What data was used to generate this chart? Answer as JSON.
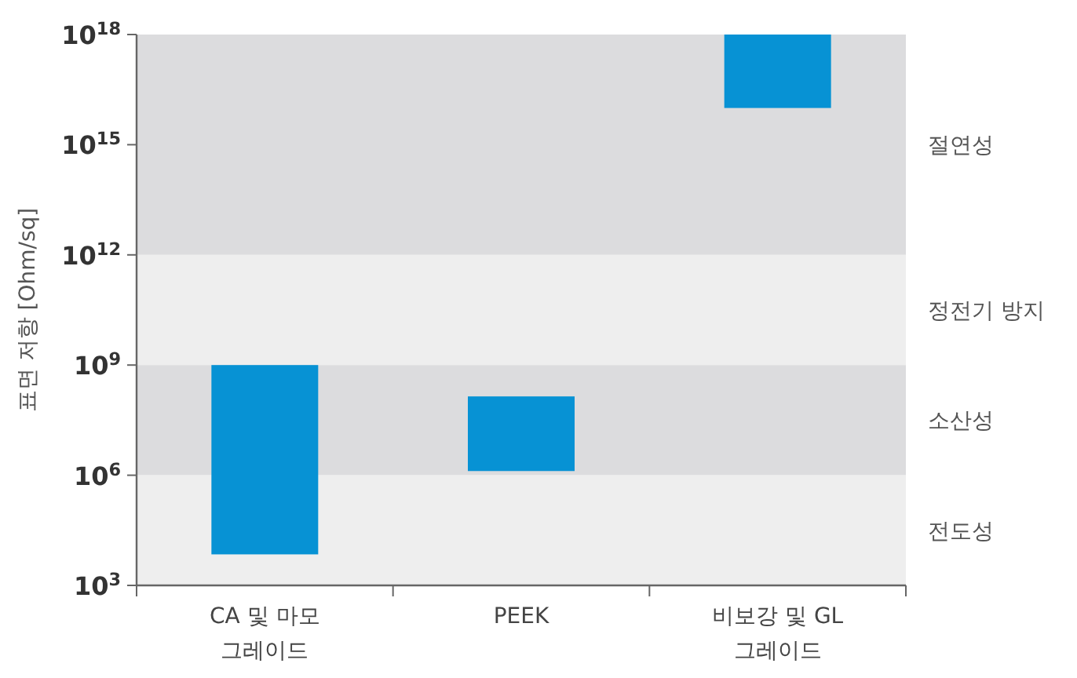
{
  "chart_data": {
    "type": "bar",
    "ylabel": "표면 저항 [Ohm/sq]",
    "categories": [
      "CA 및 마모 그레이드",
      "PEEK",
      "비보강 및 GL 그레이드"
    ],
    "series": [
      {
        "color": "#0792d4",
        "values": [
          999993000,
          138700000,
          990000000000000000
        ],
        "base": [
          7000,
          1300000,
          10000000000000000
        ]
      }
    ],
    "log": true,
    "ylim": [
      1000,
      1000000000000000000
    ],
    "yticks": [
      {
        "value": 1000,
        "label": "10$^{3}$"
      },
      {
        "value": 1000000,
        "label": "10$^{6}$"
      },
      {
        "value": 1000000000,
        "label": "10$^{9}$"
      },
      {
        "value": 1000000000000,
        "label": "10$^{12}$"
      },
      {
        "value": 1000000000000000,
        "label": "10$^{15}$"
      },
      {
        "value": 1000000000000000000,
        "label": "10$^{18}$"
      }
    ],
    "bands": [
      {
        "axis": "y",
        "from": 1000000000000,
        "to": 1000000000000000000,
        "label": "절연성",
        "color": "#dcdcde"
      },
      {
        "axis": "y",
        "from": 1000000000,
        "to": 1000000000000,
        "label": "정전기 방지",
        "color": "#eeeeee"
      },
      {
        "axis": "y",
        "from": 1000000,
        "to": 1000000000,
        "label": "소산성",
        "color": "#dcdcde"
      },
      {
        "axis": "y",
        "from": 1000,
        "to": 1000000,
        "label": "전도성",
        "color": "#eeeeee"
      }
    ]
  }
}
